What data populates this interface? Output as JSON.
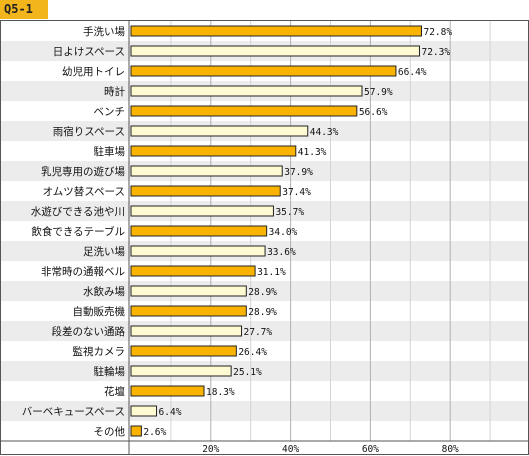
{
  "question_tag": "Q5-1",
  "colors": {
    "tag_bg": "#f3b51c",
    "bar_dark": "#f9b300",
    "bar_light": "#fdfad2",
    "row_alt": "#ececec",
    "grid": "#b0b0b0",
    "frame": "#555555"
  },
  "chart_data": {
    "type": "bar",
    "orientation": "horizontal",
    "categories": [
      "手洗い場",
      "日よけスペース",
      "幼児用トイレ",
      "時計",
      "ベンチ",
      "雨宿りスペース",
      "駐車場",
      "乳児専用の遊び場",
      "オムツ替スペース",
      "水遊びできる池や川",
      "飲食できるテーブル",
      "足洗い場",
      "非常時の通報ベル",
      "水飲み場",
      "自動販売機",
      "段差のない通路",
      "監視カメラ",
      "駐輪場",
      "花壇",
      "バーベキュースペース",
      "その他"
    ],
    "values": [
      72.8,
      72.3,
      66.4,
      57.9,
      56.6,
      44.3,
      41.3,
      37.9,
      37.4,
      35.7,
      34.0,
      33.6,
      31.1,
      28.9,
      28.9,
      27.7,
      26.4,
      25.1,
      18.3,
      6.4,
      2.6
    ],
    "value_labels": [
      "72.8%",
      "72.3%",
      "66.4%",
      "57.9%",
      "56.6%",
      "44.3%",
      "41.3%",
      "37.9%",
      "37.4%",
      "35.7%",
      "34.0%",
      "33.6%",
      "31.1%",
      "28.9%",
      "28.9%",
      "27.7%",
      "26.4%",
      "25.1%",
      "18.3%",
      "6.4%",
      "2.6%"
    ],
    "x_ticks": [
      20,
      40,
      60,
      80
    ],
    "x_tick_labels": [
      "20%",
      "40%",
      "60%",
      "80%"
    ],
    "xlim": [
      0,
      100
    ],
    "grid": true
  }
}
